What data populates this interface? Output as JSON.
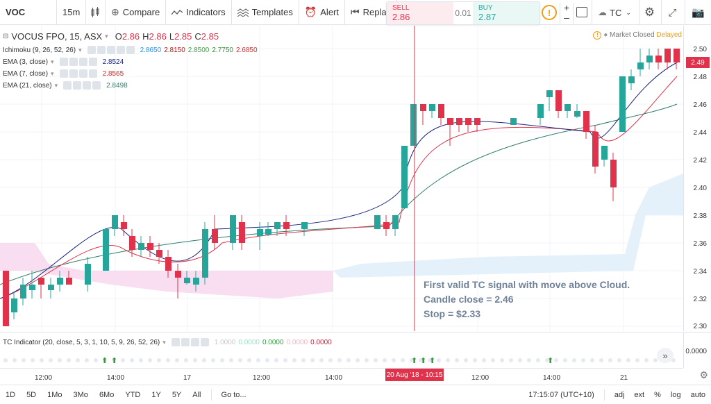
{
  "toolbar": {
    "symbol": "VOC",
    "interval": "15m",
    "compare": "Compare",
    "indicators": "Indicators",
    "templates": "Templates",
    "alert": "Alert",
    "replay": "Replay",
    "tc_label": "TC"
  },
  "trade": {
    "sell_label": "SELL",
    "sell_price": "2.86",
    "spread": "0.01",
    "buy_label": "BUY",
    "buy_price": "2.87"
  },
  "legend": {
    "title": "VOCUS FPO, 15, ASX",
    "o_label": "O",
    "o": "2.86",
    "h_label": "H",
    "h": "2.86",
    "l_label": "L",
    "l": "2.85",
    "c_label": "C",
    "c": "2.85",
    "ichimoku": "Ichimoku (9, 26, 52, 26)",
    "ich_values": [
      "2.8650",
      "2.8150",
      "2.8500",
      "2.7750",
      "2.6850"
    ],
    "ema3": "EMA (3, close)",
    "ema3_val": "2.8524",
    "ema7": "EMA (7, close)",
    "ema7_val": "2.8565",
    "ema21": "EMA (21, close)",
    "ema21_val": "2.8498",
    "tc_indicator": "TC Indicator (20, close, 5, 3, 1, 10, 5, 9, 26, 52, 26)",
    "tc_values": [
      "1.0000",
      "0.0000",
      "0.0000",
      "0.0000",
      "0.0000"
    ]
  },
  "status": {
    "market": "Market Closed",
    "delayed": "Delayed"
  },
  "annotation": {
    "line1": "First valid TC signal with move above Cloud.",
    "line2": "Candle close = 2.46",
    "line3": "Stop = $2.33"
  },
  "price_axis": {
    "labels": [
      "2.50",
      "2.48",
      "2.46",
      "2.44",
      "2.42",
      "2.40",
      "2.38",
      "2.36",
      "2.34",
      "2.32",
      "2.30"
    ],
    "last_price": "2.49",
    "ind_label": "0.0000"
  },
  "time_axis": {
    "labels": [
      "12:00",
      "14:00",
      "17",
      "12:00",
      "14:00",
      "12:00",
      "14:00",
      "21"
    ],
    "marker": "20 Aug '18 - 10:15"
  },
  "bottom": {
    "ranges": [
      "1D",
      "5D",
      "1Mo",
      "3Mo",
      "6Mo",
      "YTD",
      "1Y",
      "5Y",
      "All"
    ],
    "goto": "Go to...",
    "clock": "17:15:07 (UTC+10)",
    "adj": "adj",
    "ext": "ext",
    "percent": "%",
    "log": "log",
    "auto": "auto"
  },
  "colors": {
    "up": "#26a69a",
    "down": "#e0334b",
    "cloud": "#f8d5ee",
    "cloud_up": "#e1effa"
  }
}
